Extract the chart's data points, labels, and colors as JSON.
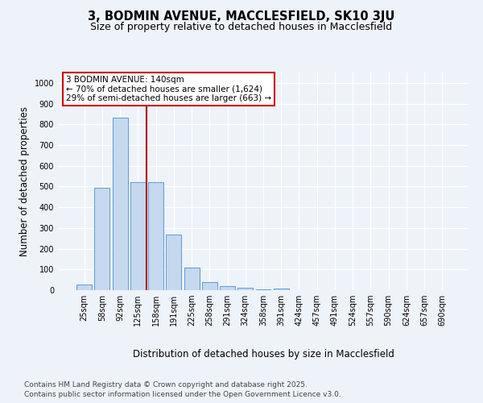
{
  "title": "3, BODMIN AVENUE, MACCLESFIELD, SK10 3JU",
  "subtitle": "Size of property relative to detached houses in Macclesfield",
  "xlabel": "Distribution of detached houses by size in Macclesfield",
  "ylabel": "Number of detached properties",
  "categories": [
    "25sqm",
    "58sqm",
    "92sqm",
    "125sqm",
    "158sqm",
    "191sqm",
    "225sqm",
    "258sqm",
    "291sqm",
    "324sqm",
    "358sqm",
    "391sqm",
    "424sqm",
    "457sqm",
    "491sqm",
    "524sqm",
    "557sqm",
    "590sqm",
    "624sqm",
    "657sqm",
    "690sqm"
  ],
  "values": [
    28,
    492,
    833,
    522,
    522,
    270,
    107,
    37,
    20,
    10,
    5,
    7,
    0,
    0,
    0,
    0,
    0,
    0,
    0,
    0,
    0
  ],
  "bar_color": "#c5d8ee",
  "bar_edge_color": "#5b9bd5",
  "annotation_text": "3 BODMIN AVENUE: 140sqm\n← 70% of detached houses are smaller (1,624)\n29% of semi-detached houses are larger (663) →",
  "annotation_box_color": "#ffffff",
  "annotation_box_edge": "#cc0000",
  "vline_color": "#aa0000",
  "footnote1": "Contains HM Land Registry data © Crown copyright and database right 2025.",
  "footnote2": "Contains public sector information licensed under the Open Government Licence v3.0.",
  "ylim": [
    0,
    1050
  ],
  "yticks": [
    0,
    100,
    200,
    300,
    400,
    500,
    600,
    700,
    800,
    900,
    1000
  ],
  "background_color": "#eef2f9",
  "grid_color": "#ffffff",
  "title_fontsize": 10.5,
  "subtitle_fontsize": 9,
  "tick_fontsize": 7,
  "label_fontsize": 8.5,
  "footnote_fontsize": 6.5,
  "annotation_fontsize": 7.5
}
